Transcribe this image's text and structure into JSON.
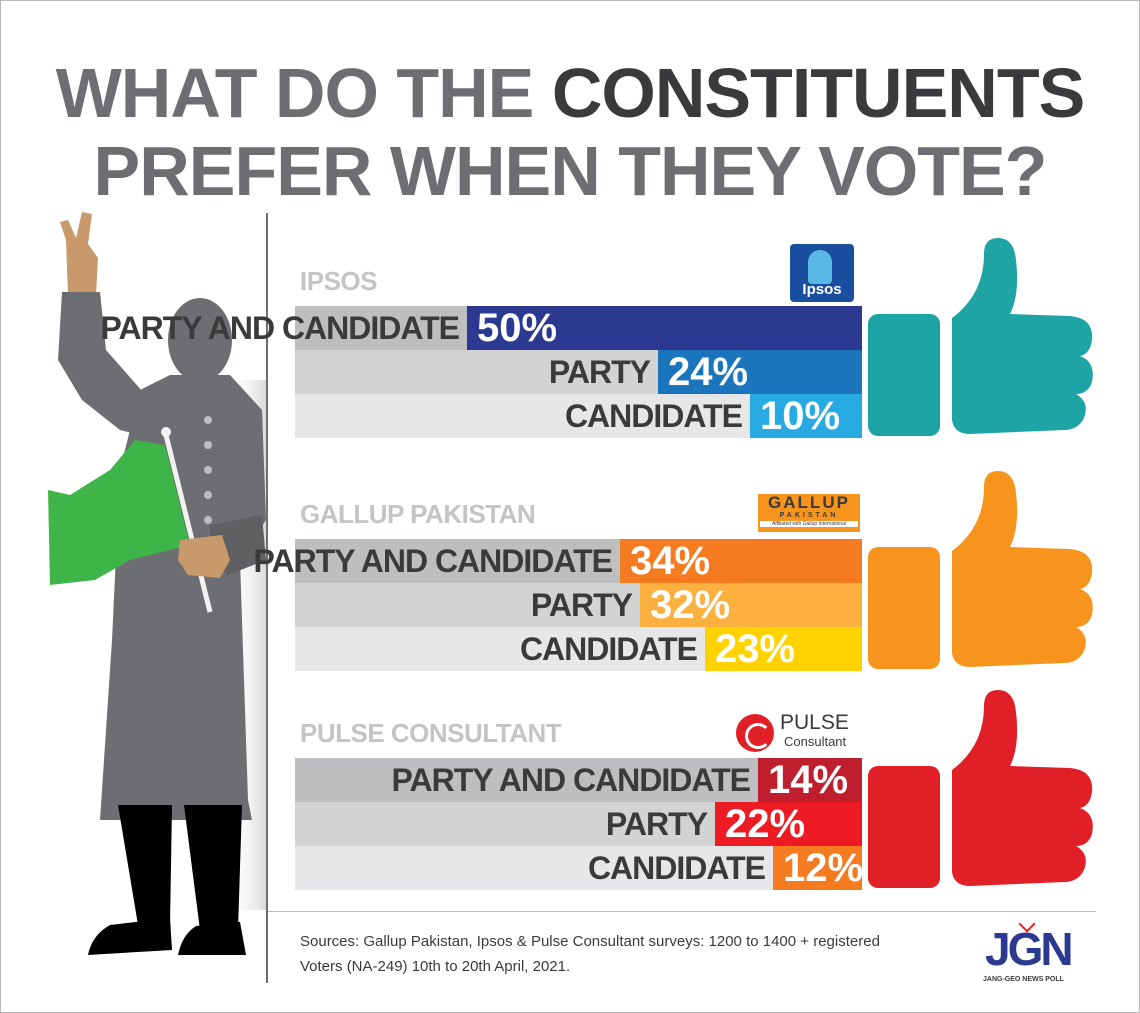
{
  "title": {
    "line1_light": "WHAT DO THE ",
    "line1_bold": "CONSTITUENTS",
    "line2": "PREFER WHEN THEY VOTE?"
  },
  "chart_data": [
    {
      "type": "bar",
      "title": "IPSOS",
      "categories": [
        "PARTY AND CANDIDATE",
        "PARTY",
        "CANDIDATE"
      ],
      "values": [
        50,
        24,
        10
      ],
      "value_labels": [
        "50%",
        "24%",
        "10%"
      ],
      "colors": [
        "#2b3990",
        "#1b75bc",
        "#27aae1"
      ],
      "thumb_color": "#1fa4a5",
      "logo": "Ipsos"
    },
    {
      "type": "bar",
      "title": "GALLUP PAKISTAN",
      "categories": [
        "PARTY AND CANDIDATE",
        "PARTY",
        "CANDIDATE"
      ],
      "values": [
        34,
        32,
        23
      ],
      "value_labels": [
        "34%",
        "32%",
        "23%"
      ],
      "colors": [
        "#f47b20",
        "#fbb040",
        "#ffd200"
      ],
      "thumb_color": "#f7941d",
      "logo": {
        "line1": "GALLUP",
        "line2": "PAKISTAN",
        "line3": "Affiliated with Gallup International"
      }
    },
    {
      "type": "bar",
      "title": "PULSE CONSULTANT",
      "categories": [
        "PARTY AND CANDIDATE",
        "PARTY",
        "CANDIDATE"
      ],
      "values": [
        14,
        22,
        12
      ],
      "value_labels": [
        "14%",
        "22%",
        "12%"
      ],
      "colors": [
        "#be1e2d",
        "#ed1c24",
        "#f47b20"
      ],
      "thumb_color": "#e01f27",
      "logo": {
        "line1": "PULSE",
        "line2": "Consultant"
      }
    }
  ],
  "sources": {
    "line1": "Sources: Gallup Pakistan, Ipsos & Pulse Consultant surveys: 1200 to 1400 + registered",
    "line2": "Voters (NA-249) 10th to 20th April, 2021."
  },
  "brand": {
    "mark": "JGN",
    "caption": "JANG-GEO NEWS POLL"
  }
}
